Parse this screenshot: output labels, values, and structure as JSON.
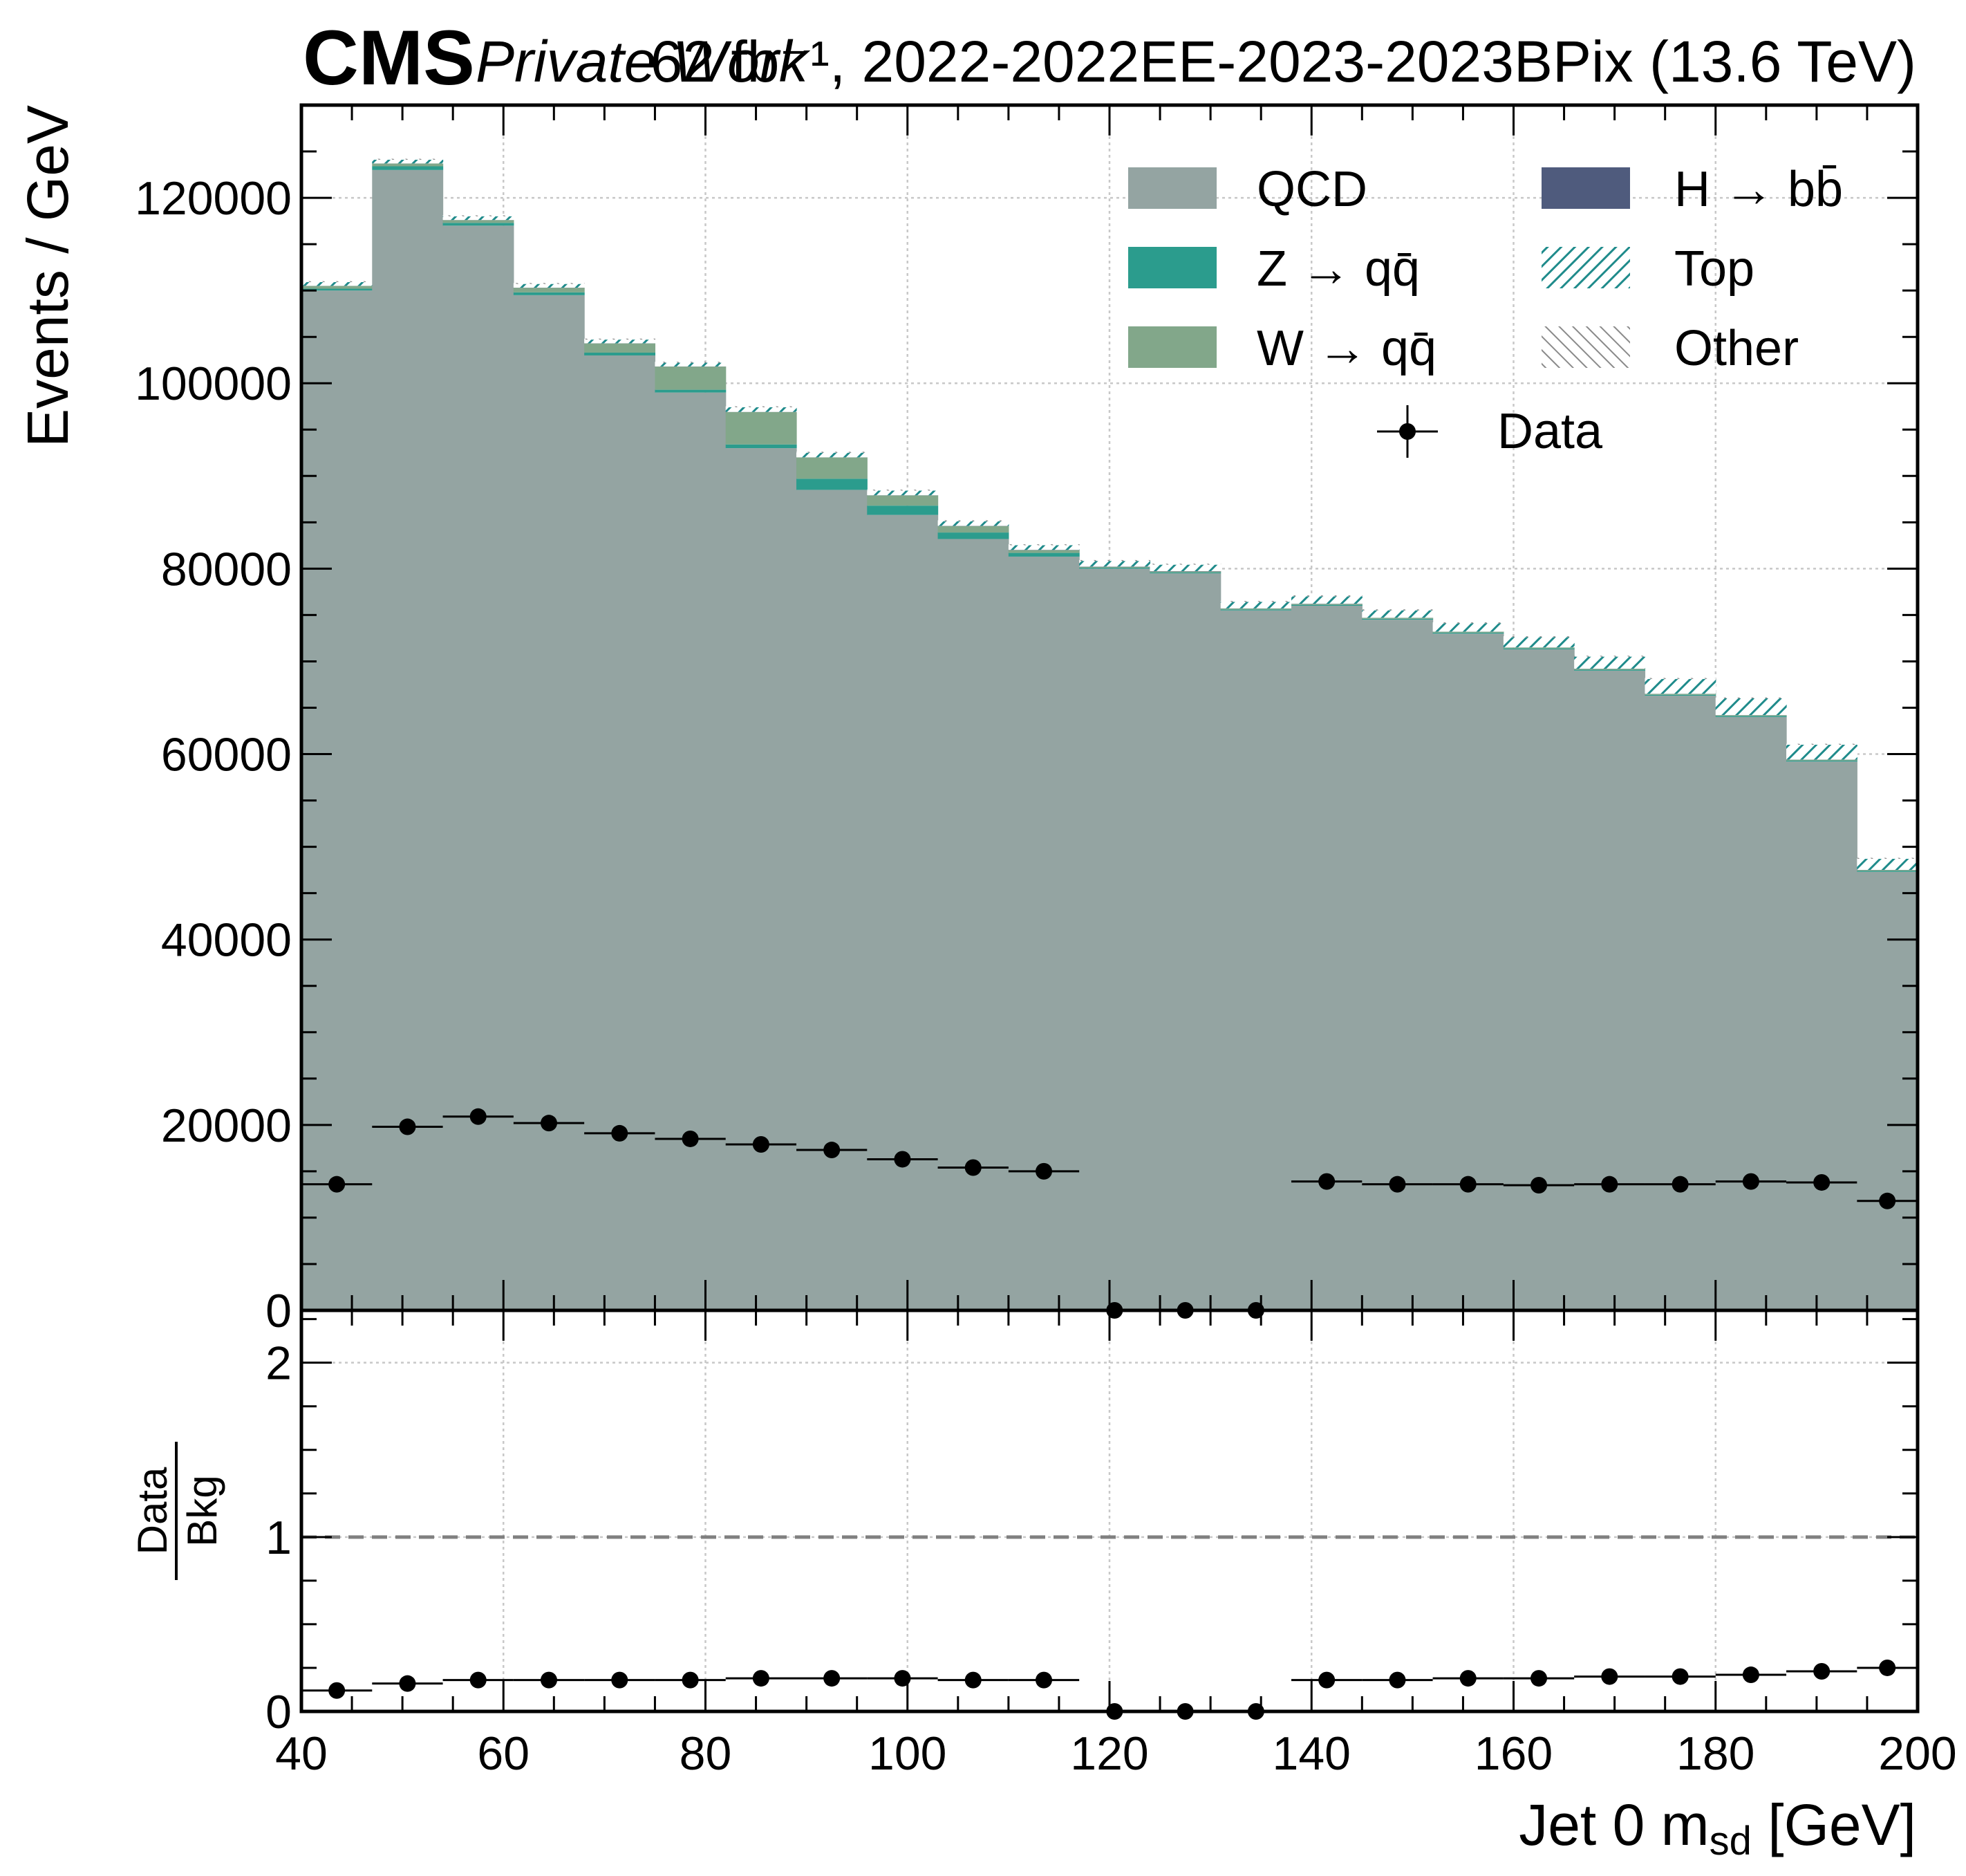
{
  "header": {
    "cms_label": "CMS",
    "private_label": "Private Work",
    "lumi_label": "62 fb⁻¹, 2022-2022EE-2023-2023BPix (13.6 TeV)"
  },
  "colors": {
    "qcd": "#94a4a2",
    "zqq": "#2b9c8d",
    "wqq": "#82a78a",
    "hbb": "#4f5b7d",
    "top_hatch": "#1f8b8b",
    "other_hatch": "#8a8a8a",
    "data": "#000000",
    "grid": "#c8c8c8",
    "ratio_line": "#808080"
  },
  "legend": {
    "items": [
      {
        "key": "qcd",
        "label": "QCD",
        "style": "fill"
      },
      {
        "key": "hbb",
        "label": "H → bb̄",
        "style": "fill"
      },
      {
        "key": "zqq",
        "label": "Z → qq̄",
        "style": "fill"
      },
      {
        "key": "top",
        "label": "Top",
        "style": "hatch"
      },
      {
        "key": "wqq",
        "label": "W → qq̄",
        "style": "fill"
      },
      {
        "key": "other",
        "label": "Other",
        "style": "hatch"
      },
      {
        "key": "data",
        "label": "Data",
        "style": "errorbar"
      }
    ]
  },
  "chart_data": [
    {
      "type": "bar",
      "stacked": true,
      "panel": "main",
      "xlabel": "Jet 0 m_sd [GeV]",
      "ylabel": "Events / GeV",
      "xlim": [
        40,
        200
      ],
      "ylim": [
        0,
        130000
      ],
      "yticks": [
        0,
        20000,
        40000,
        60000,
        80000,
        100000,
        120000
      ],
      "grid": true,
      "legend_position": "top-right",
      "bin_edges": [
        40,
        47,
        54,
        61,
        68,
        75,
        82,
        89,
        96,
        103,
        110,
        117,
        124,
        131,
        138,
        145,
        152,
        159,
        166,
        173,
        180,
        187,
        194,
        200
      ],
      "series": [
        {
          "name": "QCD",
          "values": [
            110000,
            123000,
            117000,
            109500,
            103000,
            99000,
            93000,
            88500,
            85800,
            83200,
            81300,
            80000,
            79500,
            75500,
            76000,
            74500,
            73000,
            71300,
            69000,
            66300,
            64000,
            59200,
            47300
          ]
        },
        {
          "name": "Z → qq̄",
          "values": [
            200,
            400,
            300,
            300,
            300,
            300,
            400,
            1200,
            1000,
            700,
            400,
            100,
            100,
            100,
            100,
            100,
            100,
            100,
            100,
            100,
            100,
            100,
            100
          ]
        },
        {
          "name": "W → qq̄",
          "values": [
            300,
            300,
            300,
            500,
            1000,
            2500,
            3500,
            2300,
            1100,
            700,
            300,
            100,
            100,
            100,
            100,
            100,
            100,
            100,
            100,
            100,
            100,
            100,
            100
          ]
        },
        {
          "name": "H → bb̄",
          "values": [
            10,
            10,
            10,
            10,
            10,
            10,
            10,
            10,
            20,
            20,
            30,
            30,
            30,
            20,
            20,
            10,
            10,
            10,
            10,
            10,
            10,
            10,
            10
          ]
        },
        {
          "name": "Top",
          "values": [
            400,
            400,
            400,
            400,
            400,
            400,
            500,
            500,
            500,
            500,
            500,
            600,
            700,
            700,
            800,
            800,
            900,
            1100,
            1300,
            1600,
            1800,
            1600,
            1200
          ]
        },
        {
          "name": "Other",
          "values": [
            100,
            100,
            100,
            100,
            100,
            100,
            100,
            100,
            100,
            100,
            100,
            100,
            100,
            100,
            100,
            100,
            100,
            100,
            100,
            100,
            100,
            100,
            100
          ]
        }
      ],
      "data": {
        "name": "Data",
        "x": [
          43.5,
          50.5,
          57.5,
          64.5,
          71.5,
          78.5,
          85.5,
          92.5,
          99.5,
          106.5,
          113.5,
          120.5,
          127.5,
          134.5,
          141.5,
          148.5,
          155.5,
          162.5,
          169.5,
          176.5,
          183.5,
          190.5,
          197
        ],
        "y": [
          13600,
          19800,
          20900,
          20200,
          19100,
          18500,
          17900,
          17300,
          16300,
          15400,
          15000,
          0,
          0,
          0,
          13900,
          13600,
          13600,
          13500,
          13600,
          13600,
          13900,
          13800,
          11800
        ]
      }
    },
    {
      "type": "scatter",
      "panel": "ratio",
      "xlabel": "Jet 0 m_sd [GeV]",
      "ylabel_num": "Data",
      "ylabel_den": "Bkg",
      "xlim": [
        40,
        200
      ],
      "ylim": [
        0,
        2.3
      ],
      "yticks": [
        0,
        1,
        2
      ],
      "xticks": [
        40,
        60,
        80,
        100,
        120,
        140,
        160,
        180,
        200
      ],
      "reference_line": 1,
      "grid": true,
      "x": [
        43.5,
        50.5,
        57.5,
        64.5,
        71.5,
        78.5,
        85.5,
        92.5,
        99.5,
        106.5,
        113.5,
        120.5,
        127.5,
        134.5,
        141.5,
        148.5,
        155.5,
        162.5,
        169.5,
        176.5,
        183.5,
        190.5,
        197
      ],
      "y": [
        0.12,
        0.16,
        0.18,
        0.18,
        0.18,
        0.18,
        0.19,
        0.19,
        0.19,
        0.18,
        0.18,
        0,
        0,
        0,
        0.18,
        0.18,
        0.19,
        0.19,
        0.2,
        0.2,
        0.21,
        0.23,
        0.25
      ]
    }
  ]
}
